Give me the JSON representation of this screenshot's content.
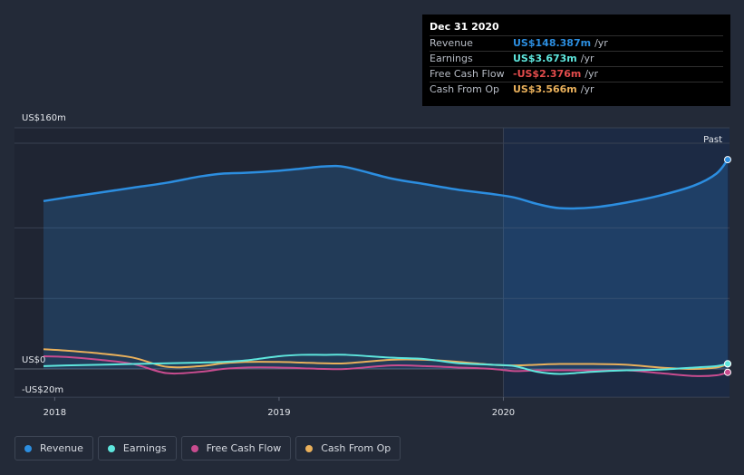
{
  "chart_data": {
    "type": "line",
    "x": [
      2017.95,
      2018.05,
      2018.2,
      2018.35,
      2018.5,
      2018.65,
      2018.75,
      2018.85,
      2019.0,
      2019.1,
      2019.2,
      2019.3,
      2019.5,
      2019.65,
      2019.8,
      2019.95,
      2020.05,
      2020.15,
      2020.25,
      2020.4,
      2020.55,
      2020.7,
      2020.85,
      2020.95,
      2021.0
    ],
    "series": [
      {
        "name": "Revenue",
        "color": "#2c8ee0",
        "values": [
          119,
          121.5,
          125,
          128.5,
          132,
          136.5,
          138.5,
          139,
          140.5,
          142,
          143.5,
          143,
          135,
          131,
          127,
          124,
          121.5,
          117,
          114,
          114.5,
          118,
          123,
          130,
          138.5,
          148.387
        ]
      },
      {
        "name": "Earnings",
        "color": "#5ee6dd",
        "values": [
          2,
          2.5,
          3,
          3.5,
          4,
          4.5,
          5,
          6,
          9,
          10,
          10,
          10,
          8,
          7,
          4,
          3,
          2,
          -2,
          -3.5,
          -2,
          -1,
          -0.5,
          1,
          2,
          3.673
        ]
      },
      {
        "name": "Free Cash Flow",
        "color": "#c84c8f",
        "values": [
          9,
          8.5,
          6.5,
          3.5,
          -3,
          -2,
          0,
          1,
          1,
          0.5,
          0,
          0,
          2.5,
          2,
          1,
          0,
          -1.5,
          -1,
          -1,
          -1,
          -1,
          -3,
          -5,
          -4.5,
          -2.376
        ]
      },
      {
        "name": "Cash From Op",
        "color": "#e9b05b",
        "values": [
          14,
          13,
          11,
          8,
          1.5,
          2,
          4,
          5,
          5,
          4.5,
          4,
          4,
          6.5,
          6.5,
          5,
          3,
          2.5,
          3,
          3.5,
          3.5,
          3,
          1,
          0,
          1,
          3.566
        ]
      }
    ],
    "ylim": [
      -20,
      160
    ],
    "xlim": [
      2017.95,
      2021.0
    ],
    "y_tick_labels": {
      "top": "US$160m",
      "zero": "US$0",
      "bottom": "-US$20m"
    },
    "x_ticks": [
      {
        "value": 2018,
        "label": "2018"
      },
      {
        "value": 2019,
        "label": "2019"
      },
      {
        "value": 2020,
        "label": "2020"
      }
    ],
    "highlight_from": 2020,
    "past_label": "Past",
    "grid": true,
    "legend_placement": "bottom-left"
  },
  "tooltip": {
    "date": "Dec 31 2020",
    "rows": [
      {
        "label": "Revenue",
        "value": "US$148.387m",
        "unit": "/yr",
        "color": "#2c8ee0"
      },
      {
        "label": "Earnings",
        "value": "US$3.673m",
        "unit": "/yr",
        "color": "#5ee6dd"
      },
      {
        "label": "Free Cash Flow",
        "value": "-US$2.376m",
        "unit": "/yr",
        "color": "#e44c4c"
      },
      {
        "label": "Cash From Op",
        "value": "US$3.566m",
        "unit": "/yr",
        "color": "#e9b05b"
      }
    ]
  },
  "legend": [
    {
      "label": "Revenue",
      "color": "#2c8ee0"
    },
    {
      "label": "Earnings",
      "color": "#5ee6dd"
    },
    {
      "label": "Free Cash Flow",
      "color": "#c84c8f"
    },
    {
      "label": "Cash From Op",
      "color": "#e9b05b"
    }
  ]
}
